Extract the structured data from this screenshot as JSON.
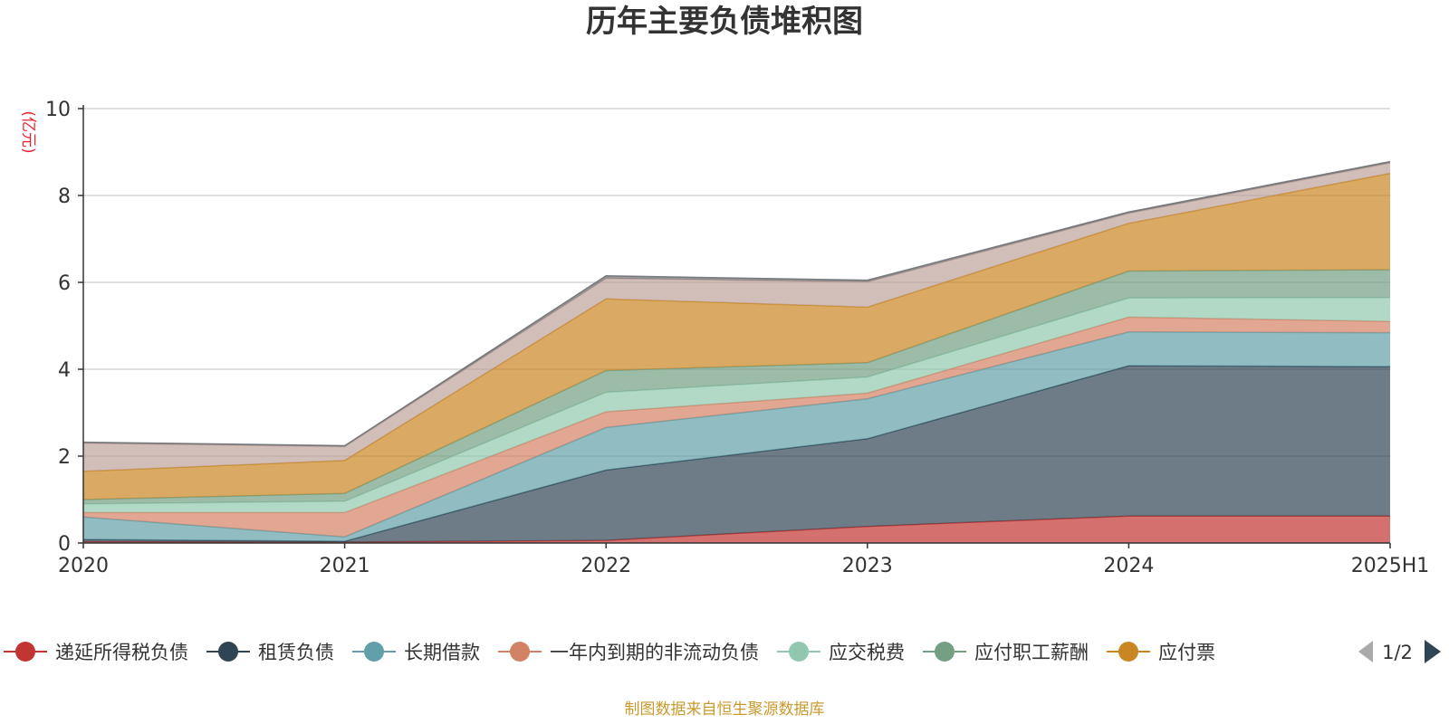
{
  "chart_data": {
    "type": "area",
    "stacked": true,
    "title": "历年主要负债堆积图",
    "unit_label": "(亿元)",
    "x": [
      "2020",
      "2021",
      "2022",
      "2023",
      "2024",
      "2025H1"
    ],
    "ylim": [
      0,
      10
    ],
    "yticks": [
      "0",
      "2",
      "4",
      "6",
      "8",
      "10"
    ],
    "grid": true,
    "legend_position": "bottom",
    "series": [
      {
        "name": "递延所得税负债",
        "color": "#c23531",
        "values": [
          0.03,
          0.02,
          0.06,
          0.38,
          0.62,
          0.62
        ]
      },
      {
        "name": "租赁负债",
        "color": "#2f4554",
        "values": [
          0.05,
          0.02,
          1.62,
          2.02,
          3.46,
          3.44
        ]
      },
      {
        "name": "长期借款",
        "color": "#61a0a8",
        "values": [
          0.52,
          0.1,
          0.98,
          0.92,
          0.78,
          0.78
        ]
      },
      {
        "name": "一年内到期的非流动负债",
        "color": "#d48265",
        "values": [
          0.1,
          0.56,
          0.36,
          0.13,
          0.34,
          0.26
        ]
      },
      {
        "name": "应交税费",
        "color": "#91c7ae",
        "values": [
          0.2,
          0.26,
          0.45,
          0.37,
          0.44,
          0.55
        ]
      },
      {
        "name": "应付职工薪酬",
        "color": "#749f83",
        "values": [
          0.1,
          0.18,
          0.5,
          0.33,
          0.62,
          0.64
        ]
      },
      {
        "name": "应付票",
        "color": "#ca8622",
        "values": [
          0.65,
          0.76,
          1.65,
          1.28,
          1.1,
          2.22
        ]
      },
      {
        "name": "",
        "color": "#bda29a",
        "values": [
          0.65,
          0.32,
          0.47,
          0.58,
          0.23,
          0.24
        ]
      },
      {
        "name": "",
        "color": "#6e7074",
        "values": [
          0.02,
          0.02,
          0.06,
          0.04,
          0.03,
          0.03
        ]
      }
    ]
  },
  "legend": {
    "page_indicator": "1/2",
    "prev_icon": "triangle-left-icon",
    "next_icon": "triangle-right-icon"
  },
  "footer": {
    "source": "制图数据来自恒生聚源数据库"
  }
}
